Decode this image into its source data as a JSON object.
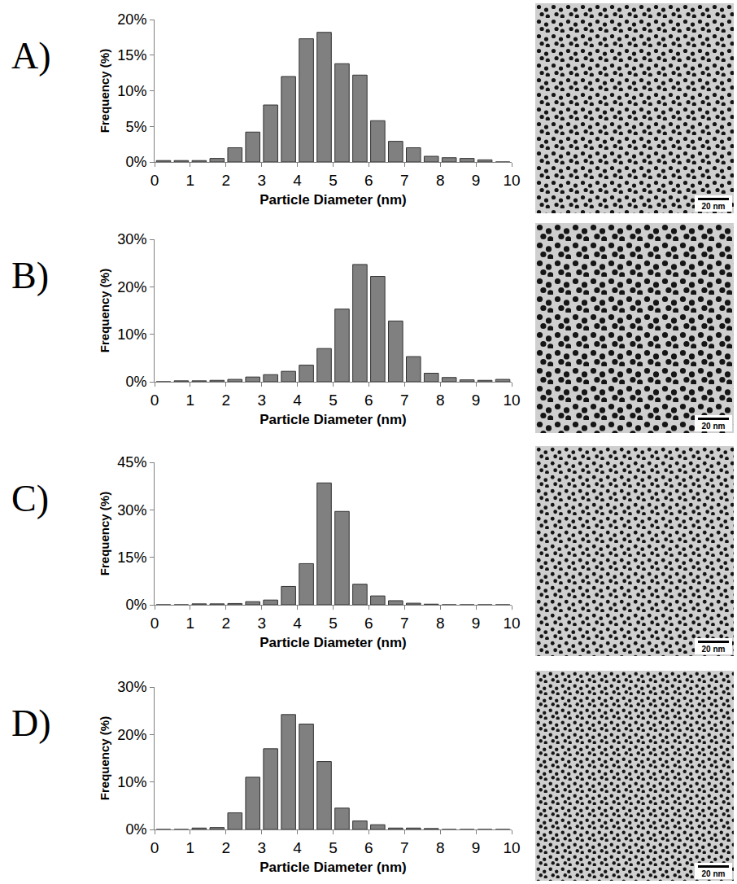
{
  "chart_data": [
    {
      "panel": "A)",
      "type": "histogram",
      "x_label": "Particle Diameter (nm)",
      "y_label": "Frequency (%)",
      "bins": [
        0,
        0.5,
        1,
        1.5,
        2,
        2.5,
        3,
        3.5,
        4,
        4.5,
        5,
        5.5,
        6,
        6.5,
        7,
        7.5,
        8,
        8.5,
        9,
        9.5,
        10
      ],
      "values": [
        0.2,
        0.2,
        0.2,
        0.5,
        2,
        4.2,
        8,
        12,
        17.3,
        18.2,
        13.8,
        12.2,
        5.8,
        2.9,
        2,
        0.8,
        0.6,
        0.5,
        0.3,
        0
      ],
      "color": "#808080",
      "xlim": [
        0,
        10
      ],
      "xticks": [
        0,
        1,
        2,
        3,
        4,
        5,
        6,
        7,
        8,
        9,
        10
      ],
      "ylim": [
        0,
        20
      ],
      "yticks": [
        {
          "value": 0,
          "label": "0%"
        },
        {
          "value": 5,
          "label": "5%"
        },
        {
          "value": 10,
          "label": "10%"
        },
        {
          "value": 15,
          "label": "15%"
        },
        {
          "value": 20,
          "label": "20%"
        }
      ],
      "grid": false
    },
    {
      "panel": "B)",
      "type": "histogram",
      "x_label": "Particle Diameter (nm)",
      "y_label": "Frequency (%)",
      "bins": [
        0,
        0.5,
        1,
        1.5,
        2,
        2.5,
        3,
        3.5,
        4,
        4.5,
        5,
        5.5,
        6,
        6.5,
        7,
        7.5,
        8,
        8.5,
        9,
        9.5,
        10
      ],
      "values": [
        0,
        0.2,
        0.2,
        0.3,
        0.5,
        1,
        1.5,
        2.2,
        3.5,
        7,
        15.3,
        24.7,
        22.2,
        12.8,
        5.3,
        1.8,
        0.9,
        0.4,
        0.3,
        0.5
      ],
      "color": "#808080",
      "xlim": [
        0,
        10
      ],
      "xticks": [
        0,
        1,
        2,
        3,
        4,
        5,
        6,
        7,
        8,
        9,
        10
      ],
      "ylim": [
        0,
        30
      ],
      "yticks": [
        {
          "value": 0,
          "label": "0%"
        },
        {
          "value": 10,
          "label": "10%"
        },
        {
          "value": 20,
          "label": "20%"
        },
        {
          "value": 30,
          "label": "30%"
        }
      ],
      "grid": false
    },
    {
      "panel": "C)",
      "type": "histogram",
      "x_label": "Particle Diameter (nm)",
      "y_label": "Frequency (%)",
      "bins": [
        0,
        0.5,
        1,
        1.5,
        2,
        2.5,
        3,
        3.5,
        4,
        4.5,
        5,
        5.5,
        6,
        6.5,
        7,
        7.5,
        8,
        8.5,
        9,
        9.5,
        10
      ],
      "values": [
        0,
        0,
        0.3,
        0.3,
        0.4,
        1,
        1.5,
        5.8,
        13,
        38.5,
        29.5,
        6.5,
        2.8,
        1.3,
        0.5,
        0.2,
        0,
        0,
        0,
        0
      ],
      "color": "#808080",
      "xlim": [
        0,
        10
      ],
      "xticks": [
        0,
        1,
        2,
        3,
        4,
        5,
        6,
        7,
        8,
        9,
        10
      ],
      "ylim": [
        0,
        45
      ],
      "yticks": [
        {
          "value": 0,
          "label": "0%"
        },
        {
          "value": 15,
          "label": "15%"
        },
        {
          "value": 30,
          "label": "30%"
        },
        {
          "value": 45,
          "label": "45%"
        }
      ],
      "grid": false
    },
    {
      "panel": "D)",
      "type": "histogram",
      "x_label": "Particle Diameter (nm)",
      "y_label": "Frequency (%)",
      "bins": [
        0,
        0.5,
        1,
        1.5,
        2,
        2.5,
        3,
        3.5,
        4,
        4.5,
        5,
        5.5,
        6,
        6.5,
        7,
        7.5,
        8,
        8.5,
        9,
        9.5,
        10
      ],
      "values": [
        0,
        0,
        0.3,
        0.4,
        3.5,
        11,
        17,
        24.2,
        22.2,
        14.3,
        4.5,
        1.8,
        1,
        0.3,
        0.3,
        0.2,
        0,
        0,
        0,
        0
      ],
      "color": "#808080",
      "xlim": [
        0,
        10
      ],
      "xticks": [
        0,
        1,
        2,
        3,
        4,
        5,
        6,
        7,
        8,
        9,
        10
      ],
      "ylim": [
        0,
        30
      ],
      "yticks": [
        {
          "value": 0,
          "label": "0%"
        },
        {
          "value": 10,
          "label": "10%"
        },
        {
          "value": 20,
          "label": "20%"
        },
        {
          "value": 30,
          "label": "30%"
        }
      ],
      "grid": false
    }
  ],
  "images": [
    {
      "scale_bar": "20 nm"
    },
    {
      "scale_bar": "20 nm"
    },
    {
      "scale_bar": "20 nm"
    },
    {
      "scale_bar": "20 nm"
    }
  ]
}
